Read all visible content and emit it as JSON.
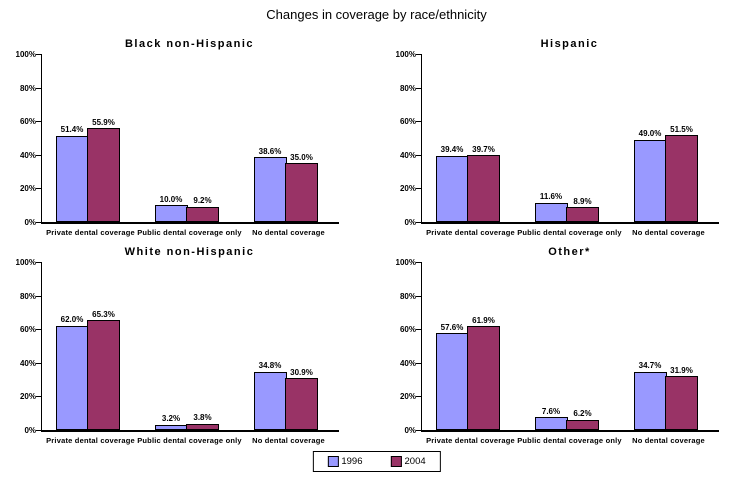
{
  "page": {
    "title": "Changes in coverage by race/ethnicity"
  },
  "legend": {
    "items": [
      {
        "label": "1996",
        "color": "#9999FF",
        "swatch_icon": "legend-swatch-1996"
      },
      {
        "label": "2004",
        "color": "#993366",
        "swatch_icon": "legend-swatch-2004"
      }
    ]
  },
  "axis": {
    "tick_labels": [
      "0%",
      "20%",
      "40%",
      "60%",
      "80%",
      "100%"
    ],
    "tick_values": [
      0,
      20,
      40,
      60,
      80,
      100
    ],
    "max": 100
  },
  "chart_data": [
    {
      "type": "bar",
      "title": "Black non-Hispanic",
      "categories": [
        "Private dental coverage",
        "Public dental coverage only",
        "No dental coverage"
      ],
      "series": [
        {
          "name": "1996",
          "color": "#9999FF",
          "values": [
            51.4,
            10.0,
            38.6
          ]
        },
        {
          "name": "2004",
          "color": "#993366",
          "values": [
            55.9,
            9.2,
            35.0
          ]
        }
      ],
      "data_labels": [
        [
          "51.4%",
          "10.0%",
          "38.6%"
        ],
        [
          "55.9%",
          "9.2%",
          "35.0%"
        ]
      ],
      "ylim": [
        0,
        100
      ],
      "grid": false,
      "legend_position": "bottom-shared"
    },
    {
      "type": "bar",
      "title": "Hispanic",
      "categories": [
        "Private dental coverage",
        "Public dental coverage only",
        "No dental coverage"
      ],
      "series": [
        {
          "name": "1996",
          "color": "#9999FF",
          "values": [
            39.4,
            11.6,
            49.0
          ]
        },
        {
          "name": "2004",
          "color": "#993366",
          "values": [
            39.7,
            8.9,
            51.5
          ]
        }
      ],
      "data_labels": [
        [
          "39.4%",
          "11.6%",
          "49.0%"
        ],
        [
          "39.7%",
          "8.9%",
          "51.5%"
        ]
      ],
      "ylim": [
        0,
        100
      ],
      "grid": false,
      "legend_position": "bottom-shared"
    },
    {
      "type": "bar",
      "title": "White non-Hispanic",
      "categories": [
        "Private dental coverage",
        "Public dental coverage only",
        "No dental coverage"
      ],
      "series": [
        {
          "name": "1996",
          "color": "#9999FF",
          "values": [
            62.0,
            3.2,
            34.8
          ]
        },
        {
          "name": "2004",
          "color": "#993366",
          "values": [
            65.3,
            3.8,
            30.9
          ]
        }
      ],
      "data_labels": [
        [
          "62.0%",
          "3.2%",
          "34.8%"
        ],
        [
          "65.3%",
          "3.8%",
          "30.9%"
        ]
      ],
      "ylim": [
        0,
        100
      ],
      "grid": false,
      "legend_position": "bottom-shared"
    },
    {
      "type": "bar",
      "title": "Other*",
      "categories": [
        "Private dental coverage",
        "Public dental coverage only",
        "No dental coverage"
      ],
      "series": [
        {
          "name": "1996",
          "color": "#9999FF",
          "values": [
            57.6,
            7.6,
            34.7
          ]
        },
        {
          "name": "2004",
          "color": "#993366",
          "values": [
            61.9,
            6.2,
            31.9
          ]
        }
      ],
      "data_labels": [
        [
          "57.6%",
          "7.6%",
          "34.7%"
        ],
        [
          "61.9%",
          "6.2%",
          "31.9%"
        ]
      ],
      "ylim": [
        0,
        100
      ],
      "grid": false,
      "legend_position": "bottom-shared"
    }
  ]
}
